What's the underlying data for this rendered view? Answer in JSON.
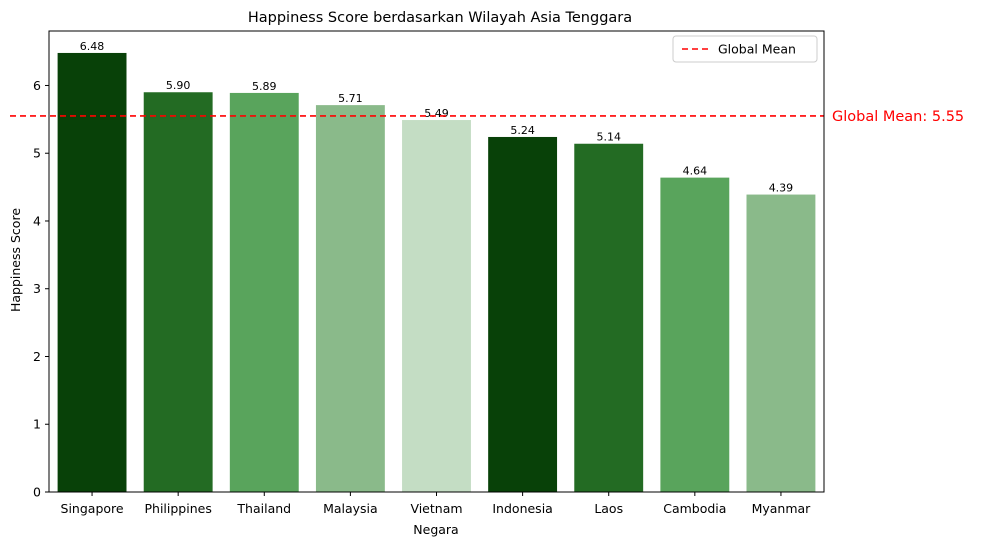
{
  "chart_data": {
    "type": "bar",
    "title": "Happiness Score berdasarkan Wilayah Asia Tenggara",
    "xlabel": "Negara",
    "ylabel": "Happiness Score",
    "categories": [
      "Singapore",
      "Philippines",
      "Thailand",
      "Malaysia",
      "Vietnam",
      "Indonesia",
      "Laos",
      "Cambodia",
      "Myanmar"
    ],
    "values": [
      6.48,
      5.9,
      5.89,
      5.71,
      5.49,
      5.24,
      5.14,
      4.64,
      4.39
    ],
    "value_labels": [
      "6.48",
      "5.90",
      "5.89",
      "5.71",
      "5.49",
      "5.24",
      "5.14",
      "4.64",
      "4.39"
    ],
    "bar_colors": [
      "#084108",
      "#236b23",
      "#59a45c",
      "#8aba8a",
      "#c4ddc4",
      "#084108",
      "#236b23",
      "#59a45c",
      "#8aba8a"
    ],
    "ylim": [
      0,
      6.804
    ],
    "yticks": [
      0,
      1,
      2,
      3,
      4,
      5,
      6
    ],
    "ytick_labels": [
      "0",
      "1",
      "2",
      "3",
      "4",
      "5",
      "6"
    ],
    "grid": false,
    "reference_line": {
      "value": 5.55,
      "color": "#ff0000",
      "style": "dashed",
      "legend_label": "Global Mean",
      "annotation": "Global Mean: 5.55"
    },
    "legend": {
      "placement": "top-right",
      "entries": [
        "Global Mean"
      ]
    }
  }
}
